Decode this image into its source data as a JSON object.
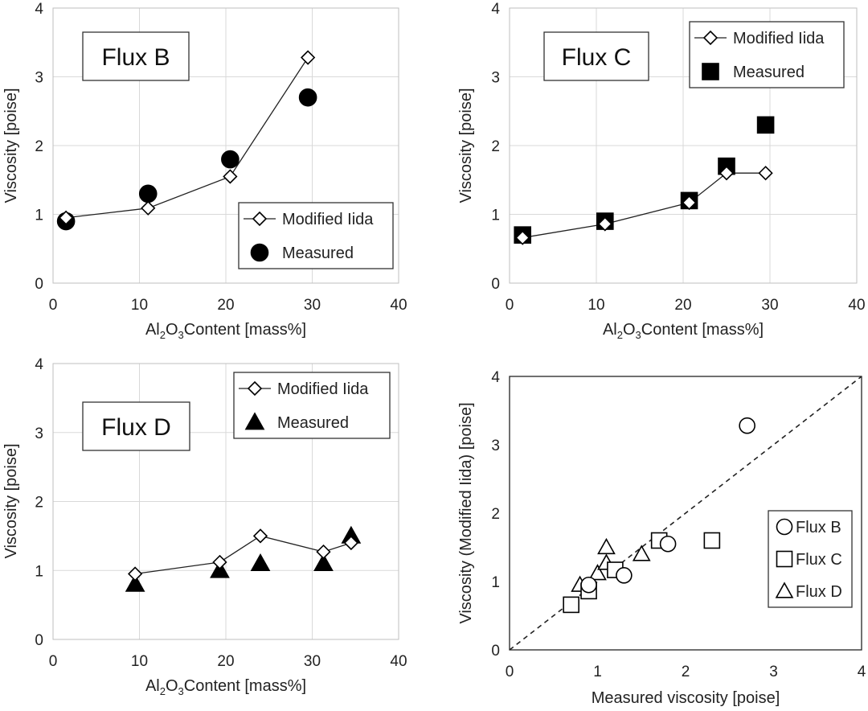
{
  "chart_data": [
    {
      "id": "flux_b",
      "type": "line",
      "title": "Flux B",
      "xlabel": "Al2O3Content [mass%]",
      "xlabel_parts": [
        "Al",
        "2",
        "O",
        "3",
        "Content [mass%]"
      ],
      "ylabel": "Viscosity [poise]",
      "xlim": [
        0,
        40
      ],
      "ylim": [
        0,
        4
      ],
      "xticks": [
        "0",
        "10",
        "20",
        "30",
        "40"
      ],
      "yticks": [
        "0",
        "1",
        "2",
        "3",
        "4"
      ],
      "grid": true,
      "legend_position": "bottom-right",
      "series": [
        {
          "name": "Modified Iida",
          "marker": "diamond-open",
          "line": true,
          "x": [
            1.5,
            11,
            20.5,
            29.5
          ],
          "y": [
            0.95,
            1.09,
            1.55,
            3.28
          ]
        },
        {
          "name": "Measured",
          "marker": "circle-filled",
          "line": false,
          "x": [
            1.5,
            11,
            20.5,
            29.5
          ],
          "y": [
            0.9,
            1.3,
            1.8,
            2.7
          ]
        }
      ]
    },
    {
      "id": "flux_c",
      "type": "line",
      "title": "Flux C",
      "xlabel": "Al2O3Content [mass%]",
      "xlabel_parts": [
        "Al",
        "2",
        "O",
        "3",
        "Content [mass%]"
      ],
      "ylabel": "Viscosity [poise]",
      "xlim": [
        0,
        40
      ],
      "ylim": [
        0,
        4
      ],
      "xticks": [
        "0",
        "10",
        "20",
        "30",
        "40"
      ],
      "yticks": [
        "0",
        "1",
        "2",
        "3",
        "4"
      ],
      "grid": true,
      "legend_position": "top-right",
      "series": [
        {
          "name": "Modified Iida",
          "marker": "diamond-open",
          "line": true,
          "x": [
            1.5,
            11,
            20.7,
            25,
            29.5
          ],
          "y": [
            0.66,
            0.86,
            1.17,
            1.6,
            1.6
          ]
        },
        {
          "name": "Measured",
          "marker": "square-filled",
          "line": false,
          "x": [
            1.5,
            11,
            20.7,
            25,
            29.5
          ],
          "y": [
            0.7,
            0.9,
            1.2,
            1.7,
            2.3
          ]
        }
      ]
    },
    {
      "id": "flux_d",
      "type": "line",
      "title": "Flux D",
      "xlabel": "Al2O3Content [mass%]",
      "xlabel_parts": [
        "Al",
        "2",
        "O",
        "3",
        "Content [mass%]"
      ],
      "ylabel": "Viscosity [poise]",
      "xlim": [
        0,
        40
      ],
      "ylim": [
        0,
        4
      ],
      "xticks": [
        "0",
        "10",
        "20",
        "30",
        "40"
      ],
      "yticks": [
        "0",
        "1",
        "2",
        "3",
        "4"
      ],
      "grid": true,
      "legend_position": "top-right",
      "series": [
        {
          "name": "Modified Iida",
          "marker": "diamond-open",
          "line": true,
          "x": [
            9.5,
            19.3,
            24,
            31.3,
            34.5
          ],
          "y": [
            0.95,
            1.12,
            1.5,
            1.27,
            1.4
          ]
        },
        {
          "name": "Measured",
          "marker": "triangle-filled",
          "line": false,
          "x": [
            9.5,
            19.3,
            24,
            31.3,
            34.5
          ],
          "y": [
            0.8,
            1.0,
            1.1,
            1.1,
            1.5
          ]
        }
      ]
    },
    {
      "id": "parity",
      "type": "scatter",
      "title": "",
      "xlabel": "Measured viscosity [poise]",
      "ylabel": "Viscosity (Modified Iida) [poise]",
      "xlim": [
        0,
        4
      ],
      "ylim": [
        0,
        4
      ],
      "xticks": [
        "0",
        "1",
        "2",
        "3",
        "4"
      ],
      "yticks": [
        "0",
        "1",
        "2",
        "3",
        "4"
      ],
      "grid": false,
      "legend_position": "bottom-right",
      "reference_line": {
        "x": [
          0,
          4
        ],
        "y": [
          0,
          4
        ],
        "style": "dashed"
      },
      "series": [
        {
          "name": "Flux B",
          "marker": "circle-open",
          "x": [
            0.9,
            1.3,
            1.8,
            2.7
          ],
          "y": [
            0.95,
            1.09,
            1.55,
            3.28
          ]
        },
        {
          "name": "Flux C",
          "marker": "square-open",
          "x": [
            0.7,
            0.9,
            1.2,
            1.7,
            2.3
          ],
          "y": [
            0.66,
            0.86,
            1.17,
            1.6,
            1.6
          ]
        },
        {
          "name": "Flux D",
          "marker": "triangle-open",
          "x": [
            0.8,
            1.0,
            1.1,
            1.1,
            1.5
          ],
          "y": [
            0.95,
            1.12,
            1.5,
            1.27,
            1.4
          ]
        }
      ]
    }
  ]
}
